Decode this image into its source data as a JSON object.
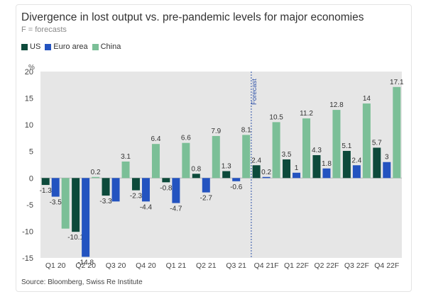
{
  "header": {
    "title": "Divergence in lost output vs. pre-pandemic levels for major economies",
    "subtitle": "F = forecasts"
  },
  "footer": {
    "source": "Source: Bloomberg, Swiss Re Institute"
  },
  "colors": {
    "US": "#0d4a3b",
    "Euro area": "#2353c0",
    "China": "#7bbf97",
    "plot_background": "#e6e6e6",
    "forecast_line": "#2b4fa8"
  },
  "chart_data": {
    "type": "bar",
    "title": "Divergence in lost output vs. pre-pandemic levels for major economies",
    "subtitle": "F = forecasts",
    "ylabel": "%",
    "ylim": [
      -15,
      20
    ],
    "yticks": [
      20,
      15,
      10,
      5,
      0,
      -5,
      -10,
      -15
    ],
    "grid": false,
    "legend_position": "top-left",
    "categories": [
      "Q1 20",
      "Q2 20",
      "Q3 20",
      "Q4 20",
      "Q1 21",
      "Q2 21",
      "Q3 21",
      "Q4 21F",
      "Q1 22F",
      "Q2 22F",
      "Q3 22F",
      "Q4 22F"
    ],
    "series": [
      {
        "name": "US",
        "values": [
          -1.3,
          -10.1,
          -3.3,
          -2.3,
          -0.8,
          0.8,
          1.3,
          2.4,
          3.5,
          4.3,
          5.1,
          5.7
        ],
        "labels": [
          "-1.3",
          "-10.1",
          "-3.3",
          "-2.3",
          "-0.8",
          "0.8",
          "1.3",
          "2.4",
          "3.5",
          "4.3",
          "5.1",
          "5.7"
        ]
      },
      {
        "name": "Euro area",
        "values": [
          -3.5,
          -14.8,
          -4.4,
          -4.4,
          -4.7,
          -2.7,
          -0.6,
          0.2,
          1,
          1.8,
          2.4,
          3
        ],
        "labels": [
          "-3.5",
          "-14.8",
          "",
          "-4.4",
          "-4.7",
          "-2.7",
          "-0.6",
          "0.2",
          "1",
          "1.8",
          "2.4",
          "3"
        ]
      },
      {
        "name": "China",
        "values": [
          -9.5,
          0.2,
          3.1,
          6.4,
          6.6,
          7.9,
          8.1,
          10.5,
          11.2,
          12.8,
          14,
          17.1
        ],
        "labels": [
          "",
          "0.2",
          "3.1",
          "6.4",
          "6.6",
          "7.9",
          "8.1",
          "10.5",
          "11.2",
          "12.8",
          "14",
          "17.1"
        ]
      }
    ],
    "annotations": [
      {
        "text": "Forecast",
        "between_categories": [
          "Q3 21",
          "Q4 21F"
        ]
      }
    ]
  }
}
